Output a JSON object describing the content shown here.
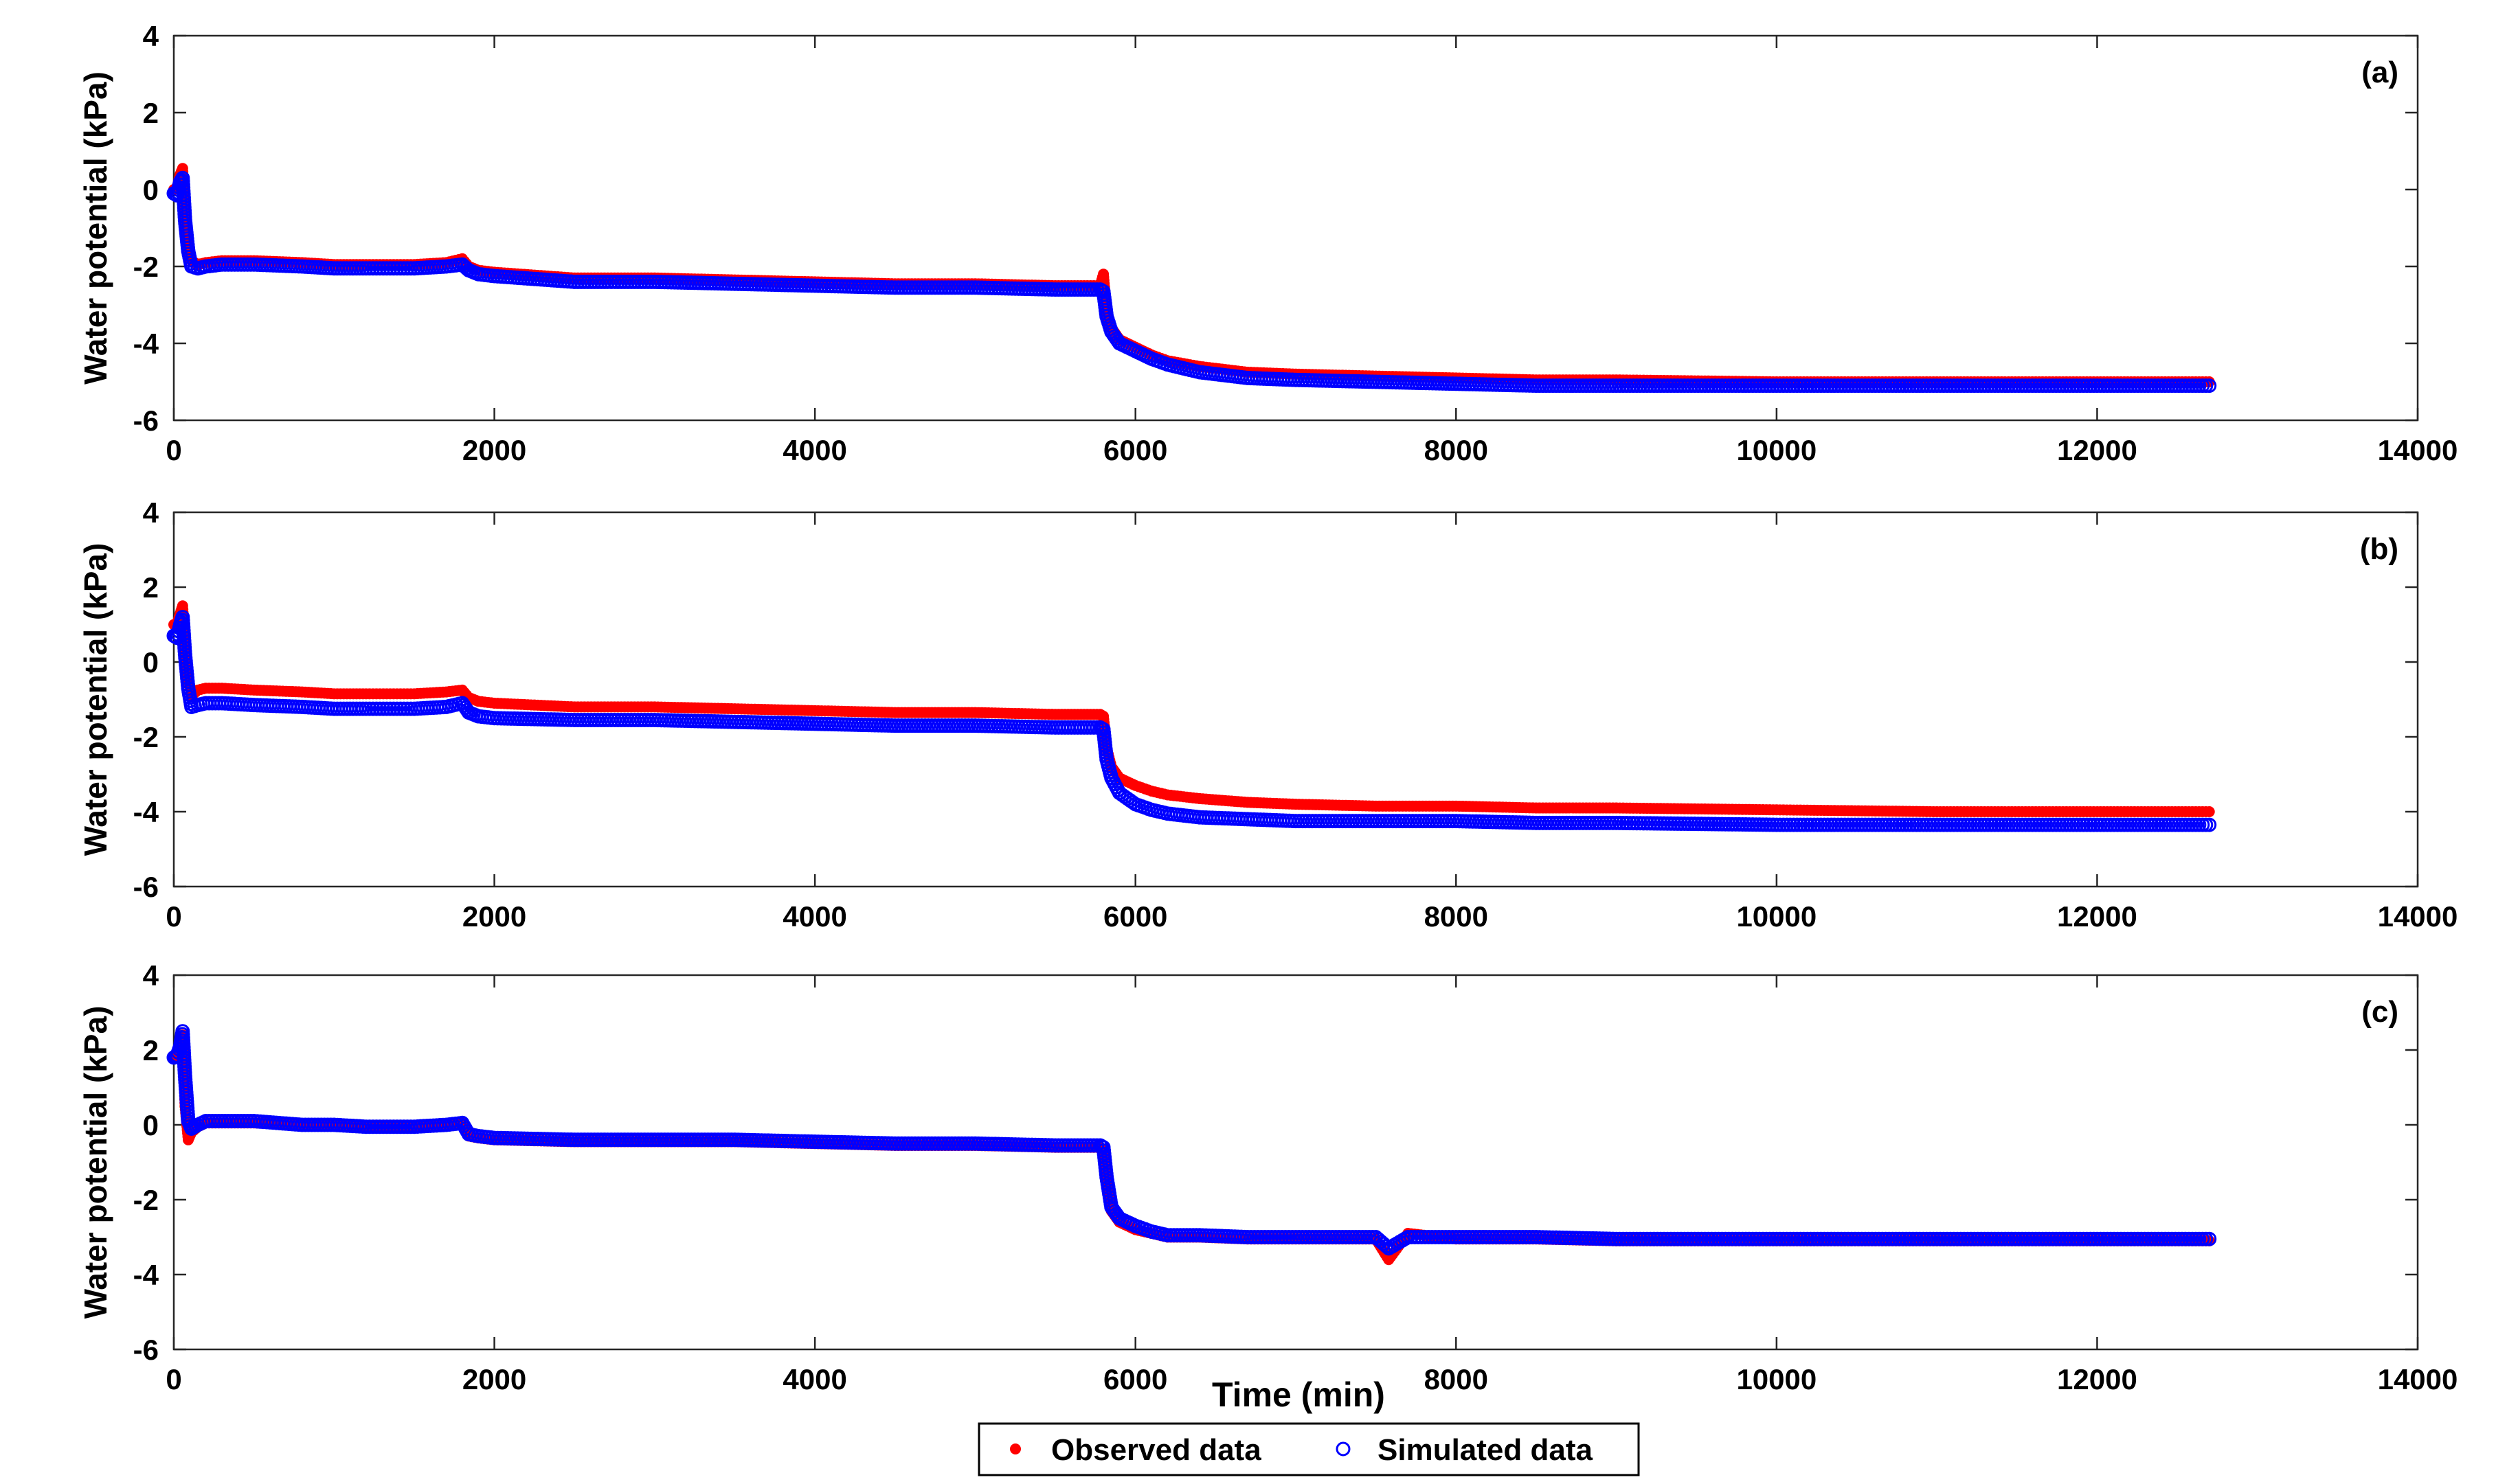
{
  "chart_data": [
    {
      "type": "scatter",
      "panel_label": "(a)",
      "xlabel": "",
      "ylabel": "Water potential (kPa)",
      "xlim": [
        0,
        14000
      ],
      "ylim": [
        -6,
        4
      ],
      "xticks": [
        0,
        2000,
        4000,
        6000,
        8000,
        10000,
        12000,
        14000
      ],
      "yticks": [
        -6,
        -4,
        -2,
        0,
        2,
        4
      ],
      "grid": false,
      "series": [
        {
          "name": "Observed data",
          "marker": "filled-circle",
          "color": "#ff0000",
          "x": [
            0,
            20,
            40,
            55,
            70,
            90,
            110,
            150,
            200,
            300,
            500,
            800,
            1000,
            1200,
            1500,
            1700,
            1800,
            1840,
            1900,
            2000,
            2500,
            3000,
            3500,
            4000,
            4500,
            5000,
            5500,
            5780,
            5800,
            5820,
            5850,
            5900,
            6000,
            6100,
            6200,
            6400,
            6700,
            7000,
            7500,
            8000,
            8500,
            9000,
            10000,
            11000,
            12000,
            12700
          ],
          "y": [
            0,
            0.05,
            0.4,
            0.55,
            -0.5,
            -1.4,
            -1.85,
            -1.95,
            -1.9,
            -1.85,
            -1.85,
            -1.9,
            -1.95,
            -1.95,
            -1.95,
            -1.9,
            -1.8,
            -2.0,
            -2.1,
            -2.15,
            -2.3,
            -2.3,
            -2.35,
            -2.4,
            -2.45,
            -2.45,
            -2.5,
            -2.5,
            -2.2,
            -3.2,
            -3.6,
            -3.9,
            -4.1,
            -4.3,
            -4.45,
            -4.6,
            -4.75,
            -4.8,
            -4.85,
            -4.9,
            -4.95,
            -4.95,
            -5.0,
            -5.0,
            -5.0,
            -5.0
          ]
        },
        {
          "name": "Simulated data",
          "marker": "open-circle",
          "color": "#0000ff",
          "x": [
            0,
            20,
            40,
            55,
            70,
            90,
            110,
            150,
            200,
            300,
            500,
            800,
            1000,
            1200,
            1500,
            1700,
            1800,
            1840,
            1900,
            2000,
            2500,
            3000,
            3500,
            4000,
            4500,
            5000,
            5500,
            5780,
            5800,
            5820,
            5850,
            5900,
            6000,
            6100,
            6200,
            6400,
            6700,
            7000,
            7500,
            8000,
            8500,
            9000,
            10000,
            11000,
            12000,
            12700
          ],
          "y": [
            -0.1,
            -0.15,
            0.2,
            0.3,
            -0.8,
            -1.6,
            -2.0,
            -2.05,
            -2.0,
            -1.95,
            -1.95,
            -2.0,
            -2.05,
            -2.05,
            -2.05,
            -2.0,
            -1.95,
            -2.1,
            -2.2,
            -2.25,
            -2.4,
            -2.4,
            -2.45,
            -2.5,
            -2.55,
            -2.55,
            -2.6,
            -2.6,
            -2.65,
            -3.3,
            -3.7,
            -4.0,
            -4.2,
            -4.4,
            -4.55,
            -4.75,
            -4.9,
            -4.95,
            -5.0,
            -5.05,
            -5.1,
            -5.1,
            -5.1,
            -5.1,
            -5.1,
            -5.1
          ]
        }
      ]
    },
    {
      "type": "scatter",
      "panel_label": "(b)",
      "xlabel": "",
      "ylabel": "Water potential (kPa)",
      "xlim": [
        0,
        14000
      ],
      "ylim": [
        -6,
        4
      ],
      "xticks": [
        0,
        2000,
        4000,
        6000,
        8000,
        10000,
        12000,
        14000
      ],
      "yticks": [
        -6,
        -4,
        -2,
        0,
        2,
        4
      ],
      "grid": false,
      "series": [
        {
          "name": "Observed data",
          "marker": "filled-circle",
          "color": "#ff0000",
          "x": [
            0,
            20,
            40,
            55,
            70,
            90,
            110,
            150,
            200,
            300,
            500,
            800,
            1000,
            1200,
            1500,
            1700,
            1800,
            1840,
            1900,
            2000,
            2500,
            3000,
            3500,
            4000,
            4500,
            5000,
            5500,
            5780,
            5800,
            5820,
            5850,
            5900,
            6000,
            6100,
            6200,
            6400,
            6700,
            7000,
            7500,
            8000,
            8500,
            9000,
            10000,
            11000,
            12000,
            12700
          ],
          "y": [
            1.0,
            1.0,
            1.3,
            1.5,
            0.5,
            -0.4,
            -0.9,
            -0.75,
            -0.7,
            -0.7,
            -0.75,
            -0.8,
            -0.85,
            -0.85,
            -0.85,
            -0.8,
            -0.75,
            -0.95,
            -1.05,
            -1.1,
            -1.2,
            -1.2,
            -1.25,
            -1.3,
            -1.35,
            -1.35,
            -1.4,
            -1.4,
            -1.45,
            -2.3,
            -2.8,
            -3.1,
            -3.3,
            -3.45,
            -3.55,
            -3.65,
            -3.75,
            -3.8,
            -3.85,
            -3.85,
            -3.9,
            -3.9,
            -3.95,
            -4.0,
            -4.0,
            -4.0
          ]
        },
        {
          "name": "Simulated data",
          "marker": "open-circle",
          "color": "#0000ff",
          "x": [
            0,
            20,
            40,
            55,
            70,
            90,
            110,
            150,
            200,
            300,
            500,
            800,
            1000,
            1200,
            1500,
            1700,
            1800,
            1840,
            1900,
            2000,
            2500,
            3000,
            3500,
            4000,
            4500,
            5000,
            5500,
            5780,
            5800,
            5820,
            5850,
            5900,
            6000,
            6100,
            6200,
            6400,
            6700,
            7000,
            7500,
            8000,
            8500,
            9000,
            10000,
            11000,
            12000,
            12700
          ],
          "y": [
            0.7,
            0.65,
            1.0,
            1.2,
            0.2,
            -0.7,
            -1.2,
            -1.15,
            -1.1,
            -1.1,
            -1.15,
            -1.2,
            -1.25,
            -1.25,
            -1.25,
            -1.2,
            -1.1,
            -1.35,
            -1.45,
            -1.5,
            -1.55,
            -1.55,
            -1.6,
            -1.65,
            -1.7,
            -1.7,
            -1.75,
            -1.75,
            -1.8,
            -2.6,
            -3.1,
            -3.5,
            -3.8,
            -3.95,
            -4.05,
            -4.15,
            -4.2,
            -4.25,
            -4.25,
            -4.25,
            -4.3,
            -4.3,
            -4.35,
            -4.35,
            -4.35,
            -4.35
          ]
        }
      ]
    },
    {
      "type": "scatter",
      "panel_label": "(c)",
      "xlabel": "Time (min)",
      "ylabel": "Water potential (kPa)",
      "xlim": [
        0,
        14000
      ],
      "ylim": [
        -6,
        4
      ],
      "xticks": [
        0,
        2000,
        4000,
        6000,
        8000,
        10000,
        12000,
        14000
      ],
      "yticks": [
        -6,
        -4,
        -2,
        0,
        2,
        4
      ],
      "grid": false,
      "series": [
        {
          "name": "Observed data",
          "marker": "filled-circle",
          "color": "#ff0000",
          "x": [
            0,
            20,
            40,
            55,
            70,
            90,
            110,
            150,
            200,
            300,
            500,
            800,
            1000,
            1200,
            1500,
            1700,
            1800,
            1840,
            1900,
            2000,
            2500,
            3000,
            3500,
            4000,
            4500,
            5000,
            5500,
            5780,
            5800,
            5820,
            5850,
            5900,
            6000,
            6100,
            6200,
            6400,
            6700,
            7000,
            7500,
            7580,
            7700,
            8000,
            8500,
            9000,
            10000,
            11000,
            12000,
            12700
          ],
          "y": [
            1.8,
            1.9,
            2.2,
            2.4,
            0.5,
            -0.4,
            -0.2,
            -0.05,
            0.05,
            0.05,
            0.05,
            0.0,
            0.0,
            -0.05,
            -0.05,
            0.0,
            0.05,
            -0.3,
            -0.35,
            -0.4,
            -0.45,
            -0.45,
            -0.45,
            -0.5,
            -0.55,
            -0.55,
            -0.6,
            -0.6,
            -0.65,
            -1.6,
            -2.3,
            -2.6,
            -2.8,
            -2.9,
            -3.0,
            -3.0,
            -3.05,
            -3.05,
            -3.05,
            -3.6,
            -2.9,
            -3.05,
            -3.05,
            -3.1,
            -3.1,
            -3.1,
            -3.1,
            -3.1
          ]
        },
        {
          "name": "Simulated data",
          "marker": "open-circle",
          "color": "#0000ff",
          "x": [
            0,
            20,
            40,
            55,
            70,
            90,
            110,
            150,
            200,
            300,
            500,
            800,
            1000,
            1200,
            1500,
            1700,
            1800,
            1840,
            1900,
            2000,
            2500,
            3000,
            3500,
            4000,
            4500,
            5000,
            5500,
            5780,
            5800,
            5820,
            5850,
            5900,
            6000,
            6100,
            6200,
            6400,
            6700,
            7000,
            7500,
            7580,
            7700,
            8000,
            8500,
            9000,
            10000,
            11000,
            12000,
            12700
          ],
          "y": [
            1.8,
            1.85,
            2.1,
            2.5,
            1.3,
            0.1,
            -0.1,
            0.0,
            0.1,
            0.1,
            0.1,
            0.0,
            0.0,
            -0.05,
            -0.05,
            0.0,
            0.05,
            -0.25,
            -0.3,
            -0.35,
            -0.4,
            -0.4,
            -0.4,
            -0.45,
            -0.5,
            -0.5,
            -0.55,
            -0.55,
            -0.6,
            -1.4,
            -2.2,
            -2.5,
            -2.7,
            -2.85,
            -2.95,
            -2.95,
            -3.0,
            -3.0,
            -3.0,
            -3.3,
            -3.0,
            -3.0,
            -3.0,
            -3.05,
            -3.05,
            -3.05,
            -3.05,
            -3.05
          ]
        }
      ]
    }
  ],
  "legend": {
    "placement": "bottom-center",
    "items": [
      {
        "label": "Observed data",
        "marker": "filled-circle",
        "color": "#ff0000"
      },
      {
        "label": "Simulated data",
        "marker": "open-circle",
        "color": "#0000ff"
      }
    ]
  }
}
